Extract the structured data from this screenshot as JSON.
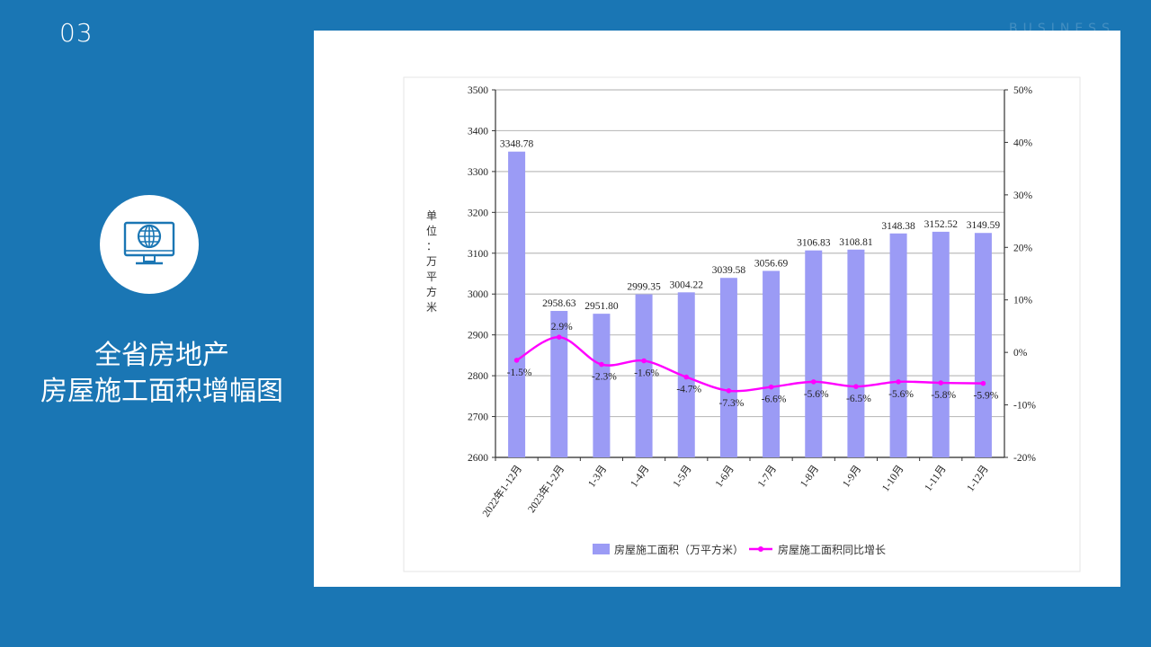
{
  "slide": {
    "number": "03",
    "watermark": "BUSINESS",
    "title_line1": "全省房地产",
    "title_line2": "房屋施工面积增幅图",
    "icon": "globe-monitor-icon"
  },
  "colors": {
    "background": "#1a76b4",
    "bar": "#9b9bf5",
    "line": "#ff00ff",
    "card": "#ffffff"
  },
  "chart_data": {
    "type": "bar",
    "title": "",
    "categories": [
      "2022年1-12月",
      "2023年1-2月",
      "1-3月",
      "1-4月",
      "1-5月",
      "1-6月",
      "1-7月",
      "1-8月",
      "1-9月",
      "1-10月",
      "1-11月",
      "1-12月"
    ],
    "series": [
      {
        "name": "房屋施工面积（万平方米）",
        "type": "bar",
        "axis": "left",
        "values": [
          3348.78,
          2958.63,
          2951.8,
          2999.35,
          3004.22,
          3039.58,
          3056.69,
          3106.83,
          3108.81,
          3148.38,
          3152.52,
          3149.59
        ],
        "labels": [
          "3348.78",
          "2958.63",
          "2951.80",
          "2999.35",
          "3004.22",
          "3039.58",
          "3056.69",
          "3106.83",
          "3108.81",
          "3148.38",
          "3152.52",
          "3149.59"
        ]
      },
      {
        "name": "房屋施工面积同比增长",
        "type": "line",
        "axis": "right",
        "values": [
          -1.5,
          2.9,
          -2.3,
          -1.6,
          -4.7,
          -7.3,
          -6.6,
          -5.6,
          -6.5,
          -5.6,
          -5.8,
          -5.9
        ],
        "labels": [
          "-1.5%",
          "2.9%",
          "-2.3%",
          "-1.6%",
          "-4.7%",
          "-7.3%",
          "-6.6%",
          "-5.6%",
          "-6.5%",
          "-5.6%",
          "-5.8%",
          "-5.9%"
        ]
      }
    ],
    "ylabel": "单位：万平方米",
    "ylabel_chars": [
      "单",
      "位",
      "：",
      "万",
      "平",
      "方",
      "米"
    ],
    "ylim": [
      2600,
      3500
    ],
    "yticks": [
      2600,
      2700,
      2800,
      2900,
      3000,
      3100,
      3200,
      3300,
      3400,
      3500
    ],
    "ytick_labels": [
      "2600",
      "2700",
      "2800",
      "2900",
      "3000",
      "3100",
      "3200",
      "3300",
      "3400",
      "3500"
    ],
    "y2lim": [
      -20,
      50
    ],
    "y2ticks": [
      -20,
      -10,
      0,
      10,
      20,
      30,
      40,
      50
    ],
    "y2tick_labels": [
      "-20%",
      "-10%",
      "0%",
      "10%",
      "20%",
      "30%",
      "40%",
      "50%"
    ],
    "grid": true,
    "legend_position": "bottom"
  }
}
